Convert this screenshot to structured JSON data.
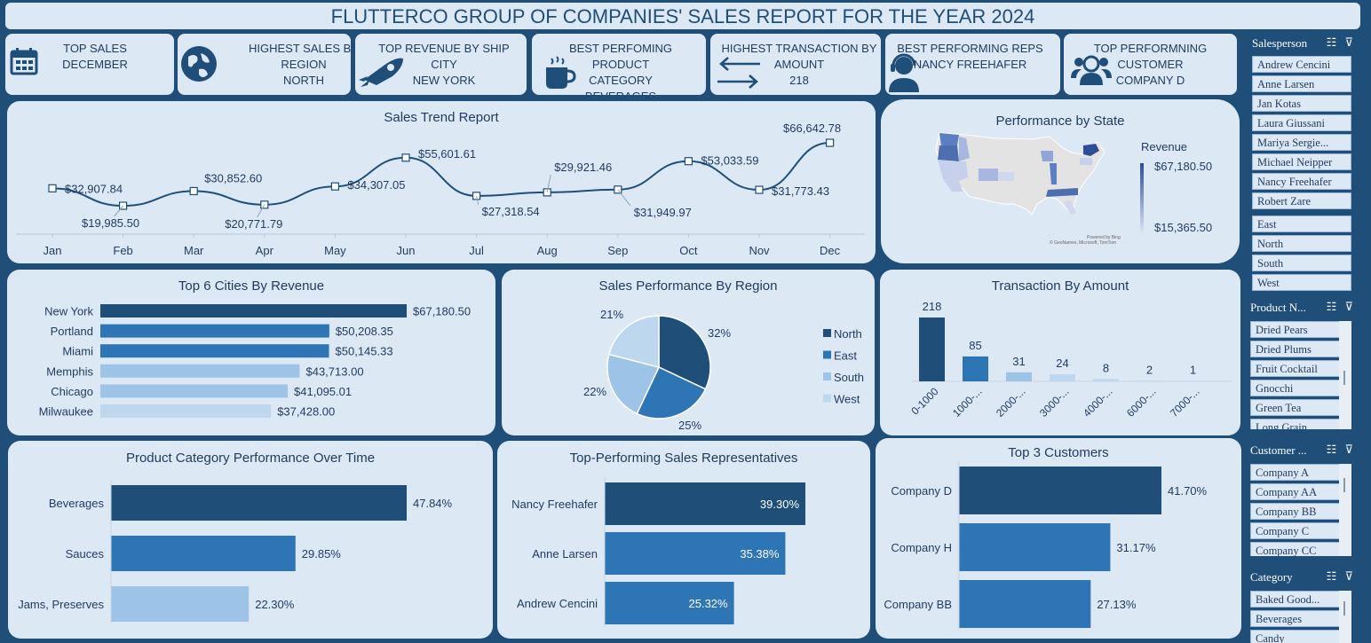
{
  "title": "FLUTTERCO GROUP OF COMPANIES' SALES REPORT FOR THE YEAR 2024",
  "kpis": [
    {
      "line1": "TOP SALES",
      "line2": "DECEMBER",
      "line3": "",
      "icon": "calendar-icon"
    },
    {
      "line1": "HIGHEST SALES BY",
      "line2": "REGION",
      "line3": "NORTH",
      "icon": "globe-icon"
    },
    {
      "line1": "TOP REVENUE BY SHIP CITY",
      "line2": "NEW YORK",
      "line3": "",
      "icon": "rocket-icon"
    },
    {
      "line1": "BEST PERFOMING PRODUCT",
      "line2": "CATEGORY",
      "line3": "BEVERAGES",
      "icon": "coffee-cup-icon"
    },
    {
      "line1": "HIGHEST TRANSACTION BY",
      "line2": "AMOUNT",
      "line3": "218",
      "icon": "arrows-exchange-icon"
    },
    {
      "line1": "BEST PERFORMING REPS",
      "line2": "NANCY FREEHAFER",
      "line3": "",
      "icon": "headset-agent-icon"
    },
    {
      "line1": "TOP PERFORMNING",
      "line2": "CUSTOMER",
      "line3": "COMPANY D",
      "icon": "customers-group-icon"
    }
  ],
  "sales_trend": {
    "title": "Sales Trend Report",
    "months": [
      "Jan",
      "Feb",
      "Mar",
      "Apr",
      "May",
      "Jun",
      "Jul",
      "Aug",
      "Sep",
      "Oct",
      "Nov",
      "Dec"
    ],
    "values": [
      32907.84,
      19985.5,
      30852.6,
      20771.79,
      34307.05,
      55601.61,
      27318.54,
      29921.46,
      31949.97,
      53033.59,
      31773.43,
      66642.78
    ],
    "labels": [
      "$32,907.84",
      "$19,985.50",
      "$30,852.60",
      "$20,771.79",
      "$34,307.05",
      "$55,601.61",
      "$27,318.54",
      "$29,921.46",
      "$31,949.97",
      "$53,033.59",
      "$31,773.43",
      "$66,642.78"
    ]
  },
  "state_map": {
    "title": "Performance by State",
    "legend_title": "Revenue",
    "legend_max": "$67,180.50",
    "legend_min": "$15,365.50",
    "attribution": "Powered by Bing",
    "copyright": "© GeoNames, Microsoft, TomTom"
  },
  "top_cities": {
    "title": "Top 6 Cities By Revenue",
    "categories": [
      "New York",
      "Portland",
      "Miami",
      "Memphis",
      "Chicago",
      "Milwaukee"
    ],
    "values": [
      67180.5,
      50208.35,
      50145.33,
      43713.0,
      41095.01,
      37428.0
    ],
    "labels": [
      "$67,180.50",
      "$50,208.35",
      "$50,145.33",
      "$43,713.00",
      "$41,095.01",
      "$37,428.00"
    ],
    "colors": [
      "#1f4e79",
      "#2e75b6",
      "#2e75b6",
      "#9dc3e6",
      "#9dc3e6",
      "#bdd7ee"
    ]
  },
  "region_pie": {
    "title": "Sales Performance By Region",
    "slices": [
      {
        "name": "North",
        "percent": 32,
        "label": "32%",
        "color": "#1f4e79"
      },
      {
        "name": "East",
        "percent": 25,
        "label": "25%",
        "color": "#2e75b6"
      },
      {
        "name": "South",
        "percent": 22,
        "label": "22%",
        "color": "#9dc3e6"
      },
      {
        "name": "West",
        "percent": 21,
        "label": "21%",
        "color": "#bdd7ee"
      }
    ]
  },
  "transactions": {
    "title": "Transaction By Amount",
    "categories": [
      "0-1000",
      "1000-...",
      "2000-...",
      "3000-...",
      "4000-...",
      "6000-...",
      "7000-..."
    ],
    "values": [
      218,
      85,
      31,
      24,
      8,
      2,
      1
    ],
    "colors": [
      "#1f4e79",
      "#2e75b6",
      "#9dc3e6",
      "#bdd7ee",
      "#bdd7ee",
      "#bdd7ee",
      "#bdd7ee"
    ]
  },
  "product_category": {
    "title": "Product Category Performance Over Time",
    "categories": [
      "Beverages",
      "Sauces",
      "Jams, Preserves"
    ],
    "values": [
      47.84,
      29.85,
      22.3
    ],
    "labels": [
      "47.84%",
      "29.85%",
      "22.30%"
    ],
    "colors": [
      "#1f4e79",
      "#2e75b6",
      "#9dc3e6"
    ]
  },
  "sales_reps": {
    "title": "Top-Performing Sales Representatives",
    "categories": [
      "Nancy Freehafer",
      "Anne Larsen",
      "Andrew Cencini"
    ],
    "values": [
      39.3,
      35.38,
      25.32
    ],
    "labels": [
      "39.30%",
      "35.38%",
      "25.32%"
    ],
    "colors": [
      "#1f4e79",
      "#2e75b6",
      "#2e75b6"
    ]
  },
  "top_customers": {
    "title": "Top 3 Customers",
    "categories": [
      "Company D",
      "Company H",
      "Company BB"
    ],
    "values": [
      41.7,
      31.17,
      27.13
    ],
    "labels": [
      "41.70%",
      "31.17%",
      "27.13%"
    ],
    "colors": [
      "#1f4e79",
      "#2e75b6",
      "#2e75b6"
    ]
  },
  "slicers": {
    "salesperson": {
      "header": "Salesperson",
      "items": [
        "Andrew Cencini",
        "Anne Larsen",
        "Jan Kotas",
        "Laura Giussani",
        "Mariya Sergie...",
        "Michael Neipper",
        "Nancy Freehafer",
        "Robert Zare"
      ]
    },
    "region": {
      "items": [
        "East",
        "North",
        "South",
        "West"
      ]
    },
    "product": {
      "header": "Product N...",
      "items": [
        "Dried Pears",
        "Dried Plums",
        "Fruit Cocktail",
        "Gnocchi",
        "Green Tea",
        "Long Grain..."
      ]
    },
    "customer": {
      "header": "Customer ...",
      "items": [
        "Company A",
        "Company AA",
        "Company BB",
        "Company C",
        "Company CC"
      ]
    },
    "category": {
      "header": "Category",
      "items": [
        "Baked Good...",
        "Beverages",
        "Candy"
      ]
    }
  }
}
